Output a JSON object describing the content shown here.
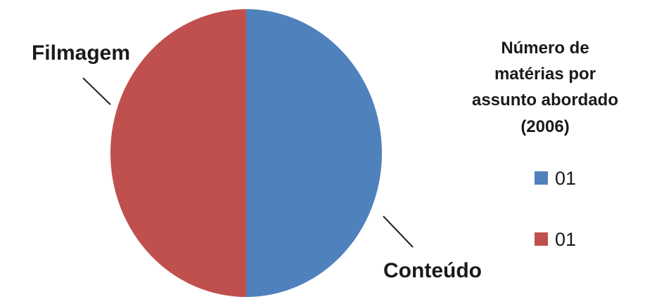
{
  "chart_data": {
    "type": "pie",
    "title": "Número de matérias por assunto abordado (2006)",
    "title_lines": [
      "Número de",
      "matérias por",
      "assunto abordado",
      "(2006)"
    ],
    "slices": [
      {
        "label": "Conteúdo",
        "value": 1,
        "legend_text": "01",
        "color": "#4f81bd"
      },
      {
        "label": "Filmagem",
        "value": 1,
        "legend_text": "01",
        "color": "#c0504d"
      }
    ],
    "legend_placement": "right"
  }
}
